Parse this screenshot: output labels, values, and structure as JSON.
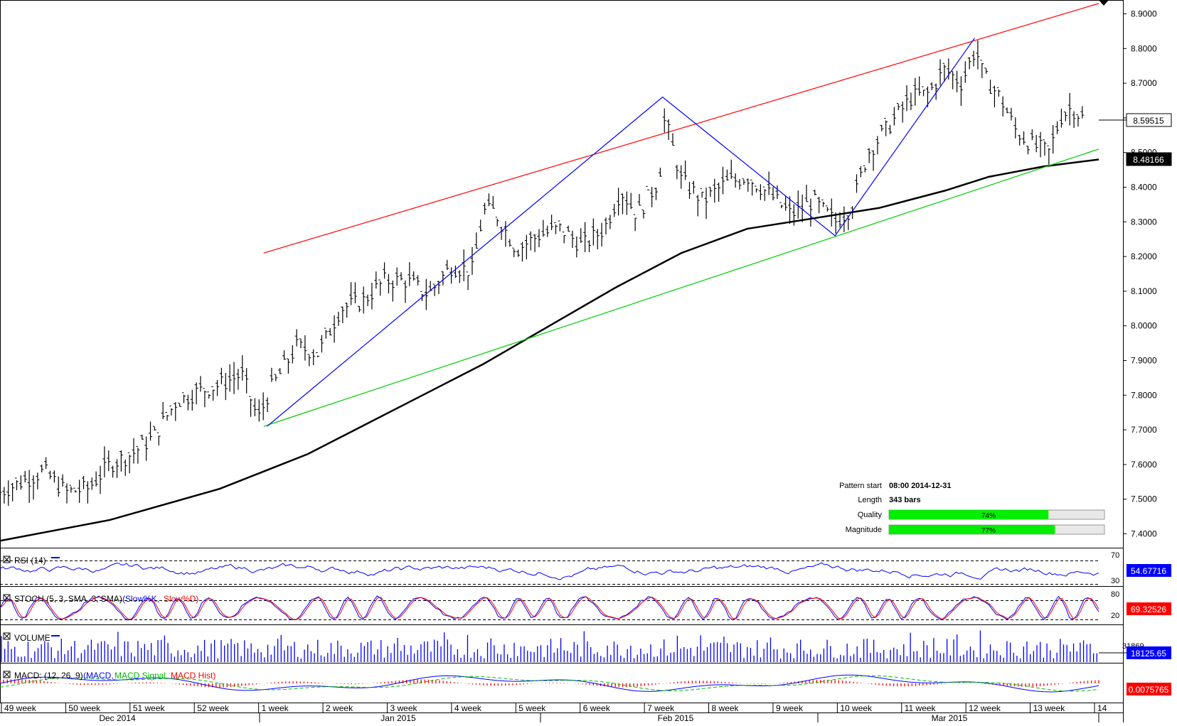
{
  "main": {
    "y_ticks": [
      "8.9000",
      "8.8000",
      "8.7000",
      "8.6000",
      "8.5000",
      "8.4000",
      "8.3000",
      "8.2000",
      "8.1000",
      "8.0000",
      "7.9000",
      "7.8000",
      "7.7000",
      "7.6000",
      "7.5000",
      "7.4000"
    ],
    "last_price": "8.59515",
    "ma_value": "8.48166",
    "colors": {
      "price": "#000000",
      "ma": "#000000",
      "resistance": "#ff0000",
      "support": "#00cc00",
      "zigzag": "#0000ff",
      "label_bg": "#0000ff"
    }
  },
  "pattern_info": {
    "start_label": "Pattern start",
    "start_value": "08:00 2014-12-31",
    "length_label": "Length",
    "length_value": "343 bars",
    "quality_label": "Quality",
    "quality_value": "74%",
    "quality_fraction": 0.74,
    "magnitude_label": "Magnitude",
    "magnitude_value": "77%",
    "magnitude_fraction": 0.77
  },
  "rsi": {
    "title": "RSI (14)",
    "levels": [
      "70",
      "30"
    ],
    "value": "54.67716"
  },
  "stoch": {
    "title": "STOCH (5, 3, SMA, 3, SMA)",
    "line1": "(Slow%K,",
    "line2": "Slow%D)",
    "levels": [
      "80",
      "20"
    ],
    "value": "69.32526"
  },
  "volume": {
    "title": "VOLUME",
    "tick": "31869",
    "value": "18125.65"
  },
  "macd": {
    "title_prefix": "MACD: (12, 26, 9)",
    "legend": [
      "(MACD,",
      "MACD Signal,",
      "MACD Hist)"
    ],
    "value": "0.0075765"
  },
  "x_axis": {
    "weeks": [
      "49 week",
      "50 week",
      "51 week",
      "52 week",
      "1 week",
      "2 week",
      "3 week",
      "4 week",
      "5 week",
      "6 week",
      "7 week",
      "8 week",
      "9 week",
      "10 week",
      "11 week",
      "12 week",
      "13 week",
      "14"
    ],
    "months": [
      "Dec 2014",
      "Jan 2015",
      "Feb 2015",
      "Mar 2015"
    ]
  },
  "chart_data": {
    "type": "candlestick",
    "title": "",
    "ylim": [
      7.36,
      8.94
    ],
    "pattern": "ascending channel",
    "resistance_line": [
      [
        0.24,
        8.21
      ],
      [
        1.0,
        8.93
      ]
    ],
    "support_line": [
      [
        0.24,
        7.71
      ],
      [
        1.0,
        8.51
      ]
    ],
    "zigzag": [
      [
        0.243,
        7.71
      ],
      [
        0.603,
        8.66
      ],
      [
        0.76,
        8.26
      ],
      [
        0.887,
        8.83
      ]
    ],
    "ma_curve": [
      [
        0.0,
        7.38
      ],
      [
        0.1,
        7.44
      ],
      [
        0.2,
        7.53
      ],
      [
        0.28,
        7.63
      ],
      [
        0.36,
        7.76
      ],
      [
        0.44,
        7.89
      ],
      [
        0.5,
        8.0
      ],
      [
        0.56,
        8.11
      ],
      [
        0.62,
        8.21
      ],
      [
        0.68,
        8.28
      ],
      [
        0.74,
        8.31
      ],
      [
        0.8,
        8.34
      ],
      [
        0.86,
        8.39
      ],
      [
        0.9,
        8.43
      ],
      [
        0.95,
        8.46
      ],
      [
        1.0,
        8.48
      ]
    ],
    "price_path": [
      [
        0.0,
        7.52
      ],
      [
        0.02,
        7.55
      ],
      [
        0.04,
        7.58
      ],
      [
        0.06,
        7.52
      ],
      [
        0.08,
        7.53
      ],
      [
        0.1,
        7.6
      ],
      [
        0.12,
        7.63
      ],
      [
        0.14,
        7.68
      ],
      [
        0.16,
        7.78
      ],
      [
        0.18,
        7.81
      ],
      [
        0.2,
        7.83
      ],
      [
        0.22,
        7.86
      ],
      [
        0.235,
        7.73
      ],
      [
        0.245,
        7.81
      ],
      [
        0.27,
        7.94
      ],
      [
        0.29,
        7.92
      ],
      [
        0.31,
        8.05
      ],
      [
        0.33,
        8.07
      ],
      [
        0.35,
        8.13
      ],
      [
        0.37,
        8.13
      ],
      [
        0.39,
        8.09
      ],
      [
        0.41,
        8.17
      ],
      [
        0.43,
        8.16
      ],
      [
        0.44,
        8.33
      ],
      [
        0.45,
        8.33
      ],
      [
        0.47,
        8.22
      ],
      [
        0.49,
        8.26
      ],
      [
        0.51,
        8.28
      ],
      [
        0.53,
        8.23
      ],
      [
        0.55,
        8.28
      ],
      [
        0.565,
        8.39
      ],
      [
        0.58,
        8.32
      ],
      [
        0.6,
        8.42
      ],
      [
        0.605,
        8.6
      ],
      [
        0.62,
        8.42
      ],
      [
        0.64,
        8.36
      ],
      [
        0.66,
        8.41
      ],
      [
        0.68,
        8.43
      ],
      [
        0.7,
        8.38
      ],
      [
        0.72,
        8.32
      ],
      [
        0.74,
        8.36
      ],
      [
        0.76,
        8.3
      ],
      [
        0.775,
        8.34
      ],
      [
        0.79,
        8.5
      ],
      [
        0.81,
        8.58
      ],
      [
        0.83,
        8.66
      ],
      [
        0.845,
        8.67
      ],
      [
        0.86,
        8.74
      ],
      [
        0.875,
        8.7
      ],
      [
        0.888,
        8.8
      ],
      [
        0.895,
        8.72
      ],
      [
        0.91,
        8.66
      ],
      [
        0.925,
        8.56
      ],
      [
        0.94,
        8.52
      ],
      [
        0.955,
        8.5
      ],
      [
        0.965,
        8.6
      ],
      [
        0.975,
        8.63
      ],
      [
        0.985,
        8.6
      ]
    ],
    "x_categories": [
      "49 week",
      "50 week",
      "51 week",
      "52 week",
      "1 week",
      "2 week",
      "3 week",
      "4 week",
      "5 week",
      "6 week",
      "7 week",
      "8 week",
      "9 week",
      "10 week",
      "11 week",
      "12 week",
      "13 week",
      "14"
    ]
  }
}
